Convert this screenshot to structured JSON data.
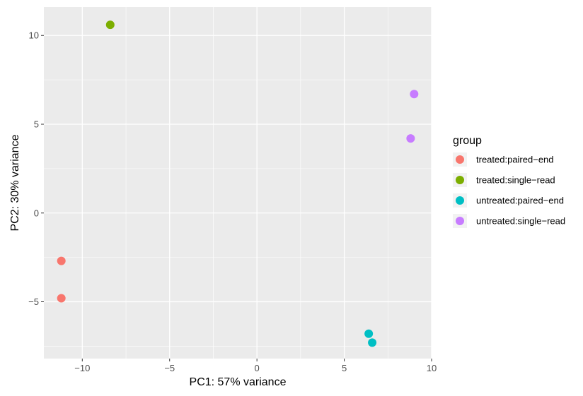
{
  "chart_data": {
    "type": "scatter",
    "xlabel": "PC1: 57% variance",
    "ylabel": "PC2: 30% variance",
    "xlim": [
      -12.2,
      10
    ],
    "ylim": [
      -8.2,
      11.6
    ],
    "x_ticks": [
      -10,
      -5,
      0,
      5,
      10
    ],
    "x_tick_labels": [
      "−10",
      "−5",
      "0",
      "5",
      "10"
    ],
    "y_ticks": [
      -5,
      0,
      5,
      10
    ],
    "y_tick_labels": [
      "−5",
      "0",
      "5",
      "10"
    ],
    "grid": true,
    "legend_position": "right",
    "legend_title": "group",
    "series": [
      {
        "name": "treated:paired−end",
        "color": "#F8766D",
        "points": [
          [
            -11.2,
            -2.7
          ],
          [
            -11.2,
            -4.8
          ]
        ]
      },
      {
        "name": "treated:single−read",
        "color": "#7CAE00",
        "points": [
          [
            -8.4,
            10.6
          ]
        ]
      },
      {
        "name": "untreated:paired−end",
        "color": "#00BFC4",
        "points": [
          [
            6.4,
            -6.8
          ],
          [
            6.6,
            -7.3
          ]
        ]
      },
      {
        "name": "untreated:single−read",
        "color": "#C77CFF",
        "points": [
          [
            9.0,
            6.7
          ],
          [
            8.8,
            4.2
          ]
        ]
      }
    ]
  }
}
